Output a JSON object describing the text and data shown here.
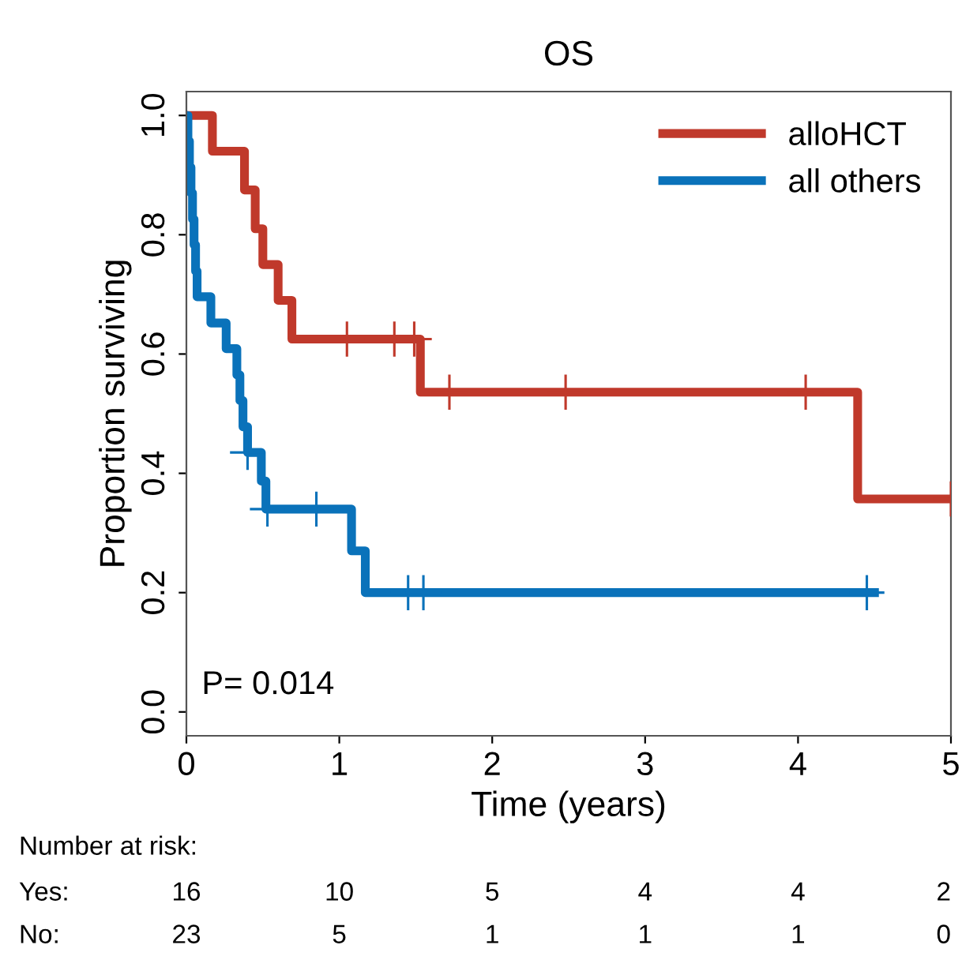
{
  "chart_data": {
    "type": "step",
    "title": "OS",
    "xlabel": "Time (years)",
    "ylabel": "Proportion surviving",
    "xlim": [
      0,
      5
    ],
    "xticks": [
      0,
      1,
      2,
      3,
      4,
      5
    ],
    "ylim": [
      -0.04,
      1.04
    ],
    "yticks": [
      {
        "value": 0,
        "label": "0.0"
      },
      {
        "value": 0.2,
        "label": "0.2"
      },
      {
        "value": 0.4,
        "label": "0.4"
      },
      {
        "value": 0.6,
        "label": "0.6"
      },
      {
        "value": 0.8,
        "label": "0.8"
      },
      {
        "value": 1,
        "label": "1.0"
      }
    ],
    "grid": false,
    "legend": "top right",
    "series": [
      {
        "name": "alloHCT",
        "color": "#c0392b",
        "x": [
          0,
          0.17,
          0.38,
          0.45,
          0.5,
          0.6,
          0.69,
          1.53,
          4.39,
          5.0
        ],
        "values": [
          1.0,
          0.94,
          0.875,
          0.81,
          0.75,
          0.69,
          0.625,
          0.536,
          0.357,
          0.357
        ]
      },
      {
        "name": "all others",
        "color": "#0a72ba",
        "x": [
          0,
          0.01,
          0.02,
          0.03,
          0.04,
          0.05,
          0.06,
          0.07,
          0.16,
          0.26,
          0.33,
          0.35,
          0.37,
          0.4,
          0.49,
          0.52,
          1.08,
          1.17,
          4.5
        ],
        "values": [
          1.0,
          0.957,
          0.913,
          0.87,
          0.826,
          0.783,
          0.739,
          0.696,
          0.652,
          0.609,
          0.565,
          0.522,
          0.478,
          0.435,
          0.387,
          0.34,
          0.27,
          0.2,
          0.2
        ]
      },
      {
        "type": "scatter",
        "marker": "cross",
        "color": "#c0392b",
        "x": [
          1.05,
          1.36,
          1.49,
          1.72,
          2.48,
          4.05,
          5.0
        ],
        "values": [
          0.625,
          0.625,
          0.625,
          0.536,
          0.536,
          0.536,
          0.357
        ]
      },
      {
        "type": "scatter",
        "marker": "cross",
        "color": "#0a72ba",
        "x": [
          0.4,
          0.53,
          0.85,
          1.45,
          1.55,
          4.45
        ],
        "values": [
          0.435,
          0.34,
          0.34,
          0.2,
          0.2,
          0.2
        ]
      }
    ],
    "annotations": [
      "P= 0.014",
      "Number at risk:",
      "Yes:",
      "16",
      "10",
      "5",
      "4",
      "4",
      "2",
      "No:",
      "23",
      "5",
      "1",
      "1",
      "1",
      "0"
    ]
  }
}
